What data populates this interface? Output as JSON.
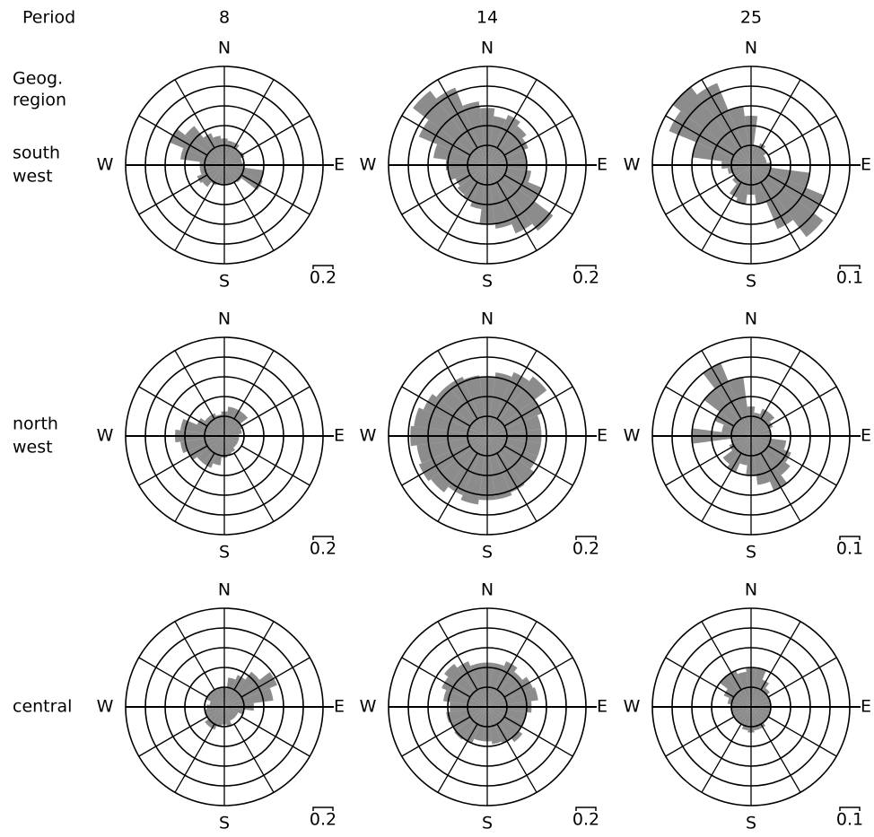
{
  "header": {
    "period": "Period",
    "region": [
      "Geog.",
      "region"
    ]
  },
  "columns": [
    8,
    14,
    25
  ],
  "rows": [
    [
      "south",
      "west"
    ],
    [
      "north",
      "west"
    ],
    [
      "central"
    ]
  ],
  "chart_data": [
    {
      "type": "rose",
      "compass": [
        "N",
        "E",
        "S",
        "W"
      ],
      "color": "#8c8c8c",
      "rlim": [
        0,
        1
      ],
      "rticks": [
        0.2,
        0.4,
        0.6,
        0.8,
        1
      ],
      "scale_bar": 0.2,
      "values": [
        0.27,
        0.25,
        0.25,
        0.2,
        0.22,
        0.18,
        0.2,
        0.4,
        0.42,
        0.22,
        0.2,
        0.2,
        0.2,
        0.2,
        0.22,
        0.28,
        0.3,
        0.25,
        0.25,
        0.45,
        0.6,
        0.5,
        0.35,
        0.3
      ]
    },
    {
      "type": "rose",
      "compass": [
        "N",
        "E",
        "S",
        "W"
      ],
      "color": "#8c8c8c",
      "rlim": [
        0,
        1
      ],
      "rticks": [
        0.2,
        0.4,
        0.6,
        0.8,
        1
      ],
      "scale_bar": 0.2,
      "values": [
        0.58,
        0.5,
        0.55,
        0.5,
        0.45,
        0.4,
        0.4,
        0.45,
        0.6,
        0.84,
        0.75,
        0.65,
        0.6,
        0.45,
        0.4,
        0.38,
        0.35,
        0.4,
        0.42,
        0.55,
        0.75,
        0.95,
        0.85,
        0.65
      ]
    },
    {
      "type": "rose",
      "compass": [
        "N",
        "E",
        "S",
        "W"
      ],
      "color": "#8c8c8c",
      "rlim": [
        0,
        0.5
      ],
      "rticks": [
        0.1,
        0.2,
        0.3,
        0.4,
        0.5
      ],
      "scale_bar": 0.1,
      "values": [
        0.25,
        0.1,
        0.12,
        0.1,
        0.08,
        0.08,
        0.1,
        0.3,
        0.4,
        0.46,
        0.35,
        0.2,
        0.15,
        0.2,
        0.18,
        0.12,
        0.1,
        0.12,
        0.15,
        0.3,
        0.45,
        0.5,
        0.45,
        0.3
      ]
    },
    {
      "type": "rose",
      "compass": [
        "N",
        "E",
        "S",
        "W"
      ],
      "color": "#8c8c8c",
      "rlim": [
        0,
        1
      ],
      "rticks": [
        0.2,
        0.4,
        0.6,
        0.8,
        1
      ],
      "scale_bar": 0.2,
      "values": [
        0.25,
        0.3,
        0.3,
        0.3,
        0.2,
        0.18,
        0.15,
        0.15,
        0.15,
        0.15,
        0.18,
        0.2,
        0.22,
        0.3,
        0.35,
        0.35,
        0.4,
        0.45,
        0.5,
        0.45,
        0.3,
        0.25,
        0.25,
        0.22
      ]
    },
    {
      "type": "rose",
      "compass": [
        "N",
        "E",
        "S",
        "W"
      ],
      "color": "#8c8c8c",
      "rlim": [
        0,
        1
      ],
      "rticks": [
        0.2,
        0.4,
        0.6,
        0.8,
        1
      ],
      "scale_bar": 0.2,
      "values": [
        0.6,
        0.65,
        0.7,
        0.76,
        0.6,
        0.55,
        0.55,
        0.55,
        0.55,
        0.6,
        0.62,
        0.65,
        0.65,
        0.7,
        0.65,
        0.72,
        0.75,
        0.72,
        0.78,
        0.75,
        0.7,
        0.65,
        0.65,
        0.62
      ]
    },
    {
      "type": "rose",
      "compass": [
        "N",
        "E",
        "S",
        "W"
      ],
      "color": "#8c8c8c",
      "rlim": [
        0,
        0.5
      ],
      "rticks": [
        0.1,
        0.2,
        0.3,
        0.4,
        0.5
      ],
      "scale_bar": 0.1,
      "values": [
        0.15,
        0.12,
        0.15,
        0.15,
        0.12,
        0.1,
        0.1,
        0.18,
        0.22,
        0.25,
        0.3,
        0.25,
        0.2,
        0.15,
        0.2,
        0.18,
        0.12,
        0.1,
        0.3,
        0.15,
        0.2,
        0.3,
        0.4,
        0.3
      ]
    },
    {
      "type": "rose",
      "compass": [
        "N",
        "E",
        "S",
        "W"
      ],
      "color": "#8c8c8c",
      "rlim": [
        0,
        1
      ],
      "rticks": [
        0.2,
        0.4,
        0.6,
        0.8,
        1
      ],
      "scale_bar": 0.2,
      "values": [
        0.2,
        0.3,
        0.35,
        0.45,
        0.58,
        0.5,
        0.3,
        0.2,
        0.15,
        0.15,
        0.15,
        0.2,
        0.18,
        0.2,
        0.25,
        0.25,
        0.2,
        0.2,
        0.18,
        0.15,
        0.2,
        0.2,
        0.2,
        0.2
      ]
    },
    {
      "type": "rose",
      "compass": [
        "N",
        "E",
        "S",
        "W"
      ],
      "color": "#8c8c8c",
      "rlim": [
        0,
        1
      ],
      "rticks": [
        0.2,
        0.4,
        0.6,
        0.8,
        1
      ],
      "scale_bar": 0.2,
      "values": [
        0.45,
        0.45,
        0.5,
        0.45,
        0.5,
        0.52,
        0.45,
        0.4,
        0.4,
        0.45,
        0.4,
        0.38,
        0.35,
        0.35,
        0.4,
        0.42,
        0.4,
        0.42,
        0.38,
        0.45,
        0.5,
        0.55,
        0.5,
        0.45
      ]
    },
    {
      "type": "rose",
      "compass": [
        "N",
        "E",
        "S",
        "W"
      ],
      "color": "#8c8c8c",
      "rlim": [
        0,
        0.5
      ],
      "rticks": [
        0.1,
        0.2,
        0.3,
        0.4,
        0.5
      ],
      "scale_bar": 0.1,
      "values": [
        0.2,
        0.2,
        0.15,
        0.12,
        0.1,
        0.1,
        0.1,
        0.1,
        0.1,
        0.1,
        0.12,
        0.12,
        0.13,
        0.12,
        0.1,
        0.1,
        0.1,
        0.1,
        0.1,
        0.12,
        0.15,
        0.2,
        0.2,
        0.18
      ]
    }
  ]
}
